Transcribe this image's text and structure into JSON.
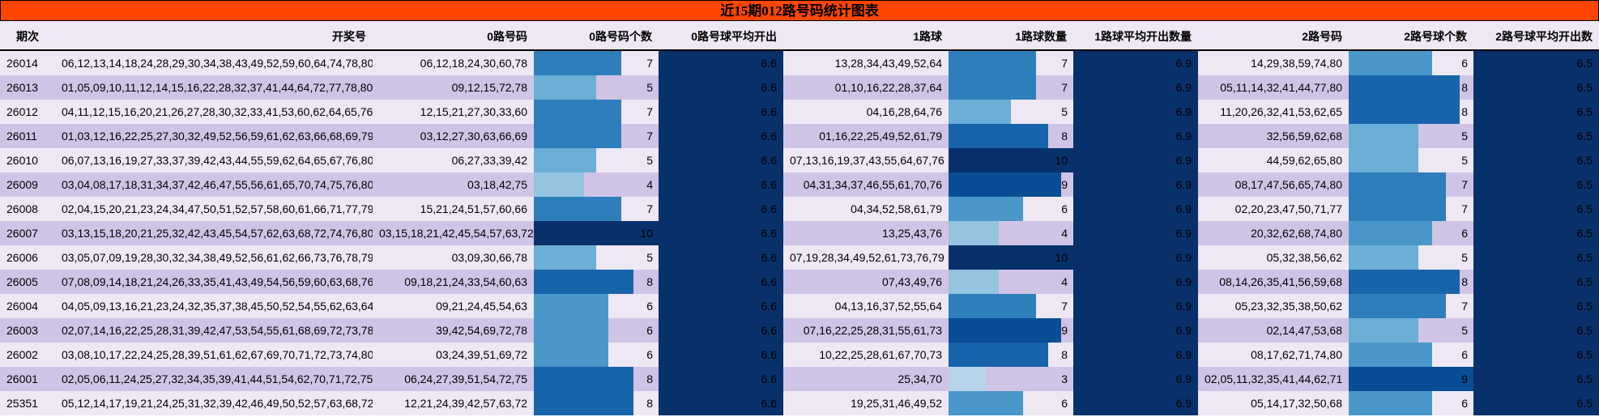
{
  "title": "近15期012路号码统计图表",
  "headers": [
    "期次",
    "开奖号",
    "0路号码",
    "0路号码个数",
    "0路号球平均开出",
    "1路球",
    "1路球数量",
    "1路球平均开出数量",
    "2路号码",
    "2路号球个数",
    "2路号球平均开出数"
  ],
  "rows": [
    {
      "issue": "26014",
      "draw": "06,12,13,14,18,24,28,29,30,34,38,43,49,52,59,60,64,74,78,80",
      "r0": "06,12,18,24,30,60,78",
      "c0": "7",
      "a0": "6.6",
      "r1": "13,28,34,43,49,52,64",
      "c1": "7",
      "a1": "6.9",
      "r2": "14,29,38,59,74,80",
      "c2": "6",
      "a2": "6.5"
    },
    {
      "issue": "26013",
      "draw": "01,05,09,10,11,12,14,15,16,22,28,32,37,41,44,64,72,77,78,80",
      "r0": "09,12,15,72,78",
      "c0": "5",
      "a0": "6.6",
      "r1": "01,10,16,22,28,37,64",
      "c1": "7",
      "a1": "6.9",
      "r2": "05,11,14,32,41,44,77,80",
      "c2": "8",
      "a2": "6.5"
    },
    {
      "issue": "26012",
      "draw": "04,11,12,15,16,20,21,26,27,28,30,32,33,41,53,60,62,64,65,76",
      "r0": "12,15,21,27,30,33,60",
      "c0": "7",
      "a0": "6.6",
      "r1": "04,16,28,64,76",
      "c1": "5",
      "a1": "6.9",
      "r2": "11,20,26,32,41,53,62,65",
      "c2": "8",
      "a2": "6.5"
    },
    {
      "issue": "26011",
      "draw": "01,03,12,16,22,25,27,30,32,49,52,56,59,61,62,63,66,68,69,79",
      "r0": "03,12,27,30,63,66,69",
      "c0": "7",
      "a0": "6.6",
      "r1": "01,16,22,25,49,52,61,79",
      "c1": "8",
      "a1": "6.9",
      "r2": "32,56,59,62,68",
      "c2": "5",
      "a2": "6.5"
    },
    {
      "issue": "26010",
      "draw": "06,07,13,16,19,27,33,37,39,42,43,44,55,59,62,64,65,67,76,80",
      "r0": "06,27,33,39,42",
      "c0": "5",
      "a0": "6.6",
      "r1": "07,13,16,19,37,43,55,64,67,76",
      "c1": "10",
      "a1": "6.9",
      "r2": "44,59,62,65,80",
      "c2": "5",
      "a2": "6.5"
    },
    {
      "issue": "26009",
      "draw": "03,04,08,17,18,31,34,37,42,46,47,55,56,61,65,70,74,75,76,80",
      "r0": "03,18,42,75",
      "c0": "4",
      "a0": "6.6",
      "r1": "04,31,34,37,46,55,61,70,76",
      "c1": "9",
      "a1": "6.9",
      "r2": "08,17,47,56,65,74,80",
      "c2": "7",
      "a2": "6.5"
    },
    {
      "issue": "26008",
      "draw": "02,04,15,20,21,23,24,34,47,50,51,52,57,58,60,61,66,71,77,79",
      "r0": "15,21,24,51,57,60,66",
      "c0": "7",
      "a0": "6.6",
      "r1": "04,34,52,58,61,79",
      "c1": "6",
      "a1": "6.9",
      "r2": "02,20,23,47,50,71,77",
      "c2": "7",
      "a2": "6.5"
    },
    {
      "issue": "26007",
      "draw": "03,13,15,18,20,21,25,32,42,43,45,54,57,62,63,68,72,74,76,80",
      "r0": "03,15,18,21,42,45,54,57,63,72",
      "c0": "10",
      "a0": "6.6",
      "r1": "13,25,43,76",
      "c1": "4",
      "a1": "6.9",
      "r2": "20,32,62,68,74,80",
      "c2": "6",
      "a2": "6.5"
    },
    {
      "issue": "26006",
      "draw": "03,05,07,09,19,28,30,32,34,38,49,52,56,61,62,66,73,76,78,79",
      "r0": "03,09,30,66,78",
      "c0": "5",
      "a0": "6.6",
      "r1": "07,19,28,34,49,52,61,73,76,79",
      "c1": "10",
      "a1": "6.9",
      "r2": "05,32,38,56,62",
      "c2": "5",
      "a2": "6.5"
    },
    {
      "issue": "26005",
      "draw": "07,08,09,14,18,21,24,26,33,35,41,43,49,54,56,59,60,63,68,76",
      "r0": "09,18,21,24,33,54,60,63",
      "c0": "8",
      "a0": "6.6",
      "r1": "07,43,49,76",
      "c1": "4",
      "a1": "6.9",
      "r2": "08,14,26,35,41,56,59,68",
      "c2": "8",
      "a2": "6.5"
    },
    {
      "issue": "26004",
      "draw": "04,05,09,13,16,21,23,24,32,35,37,38,45,50,52,54,55,62,63,64",
      "r0": "09,21,24,45,54,63",
      "c0": "6",
      "a0": "6.6",
      "r1": "04,13,16,37,52,55,64",
      "c1": "7",
      "a1": "6.9",
      "r2": "05,23,32,35,38,50,62",
      "c2": "7",
      "a2": "6.5"
    },
    {
      "issue": "26003",
      "draw": "02,07,14,16,22,25,28,31,39,42,47,53,54,55,61,68,69,72,73,78",
      "r0": "39,42,54,69,72,78",
      "c0": "6",
      "a0": "6.6",
      "r1": "07,16,22,25,28,31,55,61,73",
      "c1": "9",
      "a1": "6.9",
      "r2": "02,14,47,53,68",
      "c2": "5",
      "a2": "6.5"
    },
    {
      "issue": "26002",
      "draw": "03,08,10,17,22,24,25,28,39,51,61,62,67,69,70,71,72,73,74,80",
      "r0": "03,24,39,51,69,72",
      "c0": "6",
      "a0": "6.6",
      "r1": "10,22,25,28,61,67,70,73",
      "c1": "8",
      "a1": "6.9",
      "r2": "08,17,62,71,74,80",
      "c2": "6",
      "a2": "6.5"
    },
    {
      "issue": "26001",
      "draw": "02,05,06,11,24,25,27,32,34,35,39,41,44,51,54,62,70,71,72,75",
      "r0": "06,24,27,39,51,54,72,75",
      "c0": "8",
      "a0": "6.6",
      "r1": "25,34,70",
      "c1": "3",
      "a1": "6.9",
      "r2": "02,05,11,32,35,41,44,62,71",
      "c2": "9",
      "a2": "6.5"
    },
    {
      "issue": "25351",
      "draw": "05,12,14,17,19,21,24,25,31,32,39,42,46,49,50,52,57,63,68,72",
      "r0": "12,21,24,39,42,57,63,72",
      "c0": "8",
      "a0": "6.6",
      "r1": "19,25,31,46,49,52",
      "c1": "6",
      "a1": "6.9",
      "r2": "05,14,17,32,50,68",
      "c2": "6",
      "a2": "6.5"
    }
  ],
  "colors": {
    "title_bg": "#ff4500",
    "row_odd": "#eee8f5",
    "row_even": "#d0c4e6",
    "avg_bg": "#08306b",
    "scale": {
      "3": "#b7d4ea",
      "4": "#94c4df",
      "5": "#6baed6",
      "6": "#4a98c9",
      "7": "#2e7ebc",
      "8": "#1764ab",
      "9": "#084d96",
      "10": "#08306b"
    }
  },
  "bar_scale_max": {
    "c0": 10,
    "c1": 10,
    "c2": 9
  },
  "chart_data": {
    "type": "table",
    "title": "近15期012路号码统计图表",
    "columns": [
      "期次",
      "开奖号",
      "0路号码",
      "0路号码个数",
      "0路号球平均开出",
      "1路球",
      "1路球数量",
      "1路球平均开出数量",
      "2路号码",
      "2路号球个数",
      "2路号球平均开出数"
    ],
    "categories": [
      "26014",
      "26013",
      "26012",
      "26011",
      "26010",
      "26009",
      "26008",
      "26007",
      "26006",
      "26005",
      "26004",
      "26003",
      "26002",
      "26001",
      "25351"
    ],
    "series": [
      {
        "name": "0路号码个数",
        "values": [
          7,
          5,
          7,
          7,
          5,
          4,
          7,
          10,
          5,
          8,
          6,
          6,
          6,
          8,
          8
        ]
      },
      {
        "name": "0路号球平均开出",
        "values": [
          6.6,
          6.6,
          6.6,
          6.6,
          6.6,
          6.6,
          6.6,
          6.6,
          6.6,
          6.6,
          6.6,
          6.6,
          6.6,
          6.6,
          6.6
        ]
      },
      {
        "name": "1路球数量",
        "values": [
          7,
          7,
          5,
          8,
          10,
          9,
          6,
          4,
          10,
          4,
          7,
          9,
          8,
          3,
          6
        ]
      },
      {
        "name": "1路球平均开出数量",
        "values": [
          6.9,
          6.9,
          6.9,
          6.9,
          6.9,
          6.9,
          6.9,
          6.9,
          6.9,
          6.9,
          6.9,
          6.9,
          6.9,
          6.9,
          6.9
        ]
      },
      {
        "name": "2路号球个数",
        "values": [
          6,
          8,
          8,
          5,
          5,
          7,
          7,
          6,
          5,
          8,
          7,
          5,
          6,
          9,
          6
        ]
      },
      {
        "name": "2路号球平均开出数",
        "values": [
          6.5,
          6.5,
          6.5,
          6.5,
          6.5,
          6.5,
          6.5,
          6.5,
          6.5,
          6.5,
          6.5,
          6.5,
          6.5,
          6.5,
          6.5
        ]
      }
    ]
  }
}
